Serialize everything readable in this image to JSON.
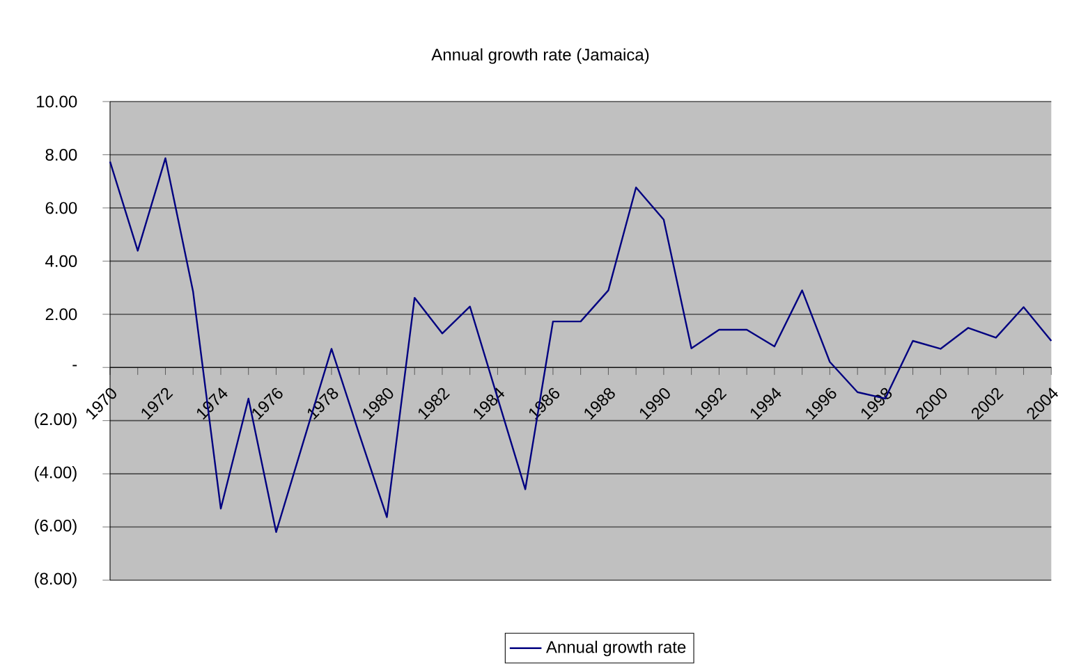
{
  "chart_data": {
    "type": "line",
    "title": "Annual growth rate (Jamaica)",
    "categories": [
      "1970",
      null,
      "1972",
      null,
      "1974",
      null,
      "1976",
      null,
      "1978",
      null,
      "1980",
      null,
      "1982",
      null,
      "1984",
      null,
      "1986",
      null,
      "1988",
      null,
      "1990",
      null,
      "1992",
      null,
      "1994",
      null,
      "1996",
      null,
      "1998",
      null,
      "2000",
      null,
      "2002",
      null,
      "2004"
    ],
    "series": [
      {
        "name": "Annual growth rate",
        "color": "#000080",
        "values": [
          7.74,
          4.39,
          7.87,
          2.85,
          -5.31,
          -1.17,
          -6.19,
          -2.74,
          0.7,
          -2.5,
          -5.63,
          2.62,
          1.28,
          2.29,
          -1.15,
          -4.58,
          1.73,
          1.73,
          2.9,
          6.77,
          5.56,
          0.72,
          1.42,
          1.42,
          0.79,
          2.9,
          0.21,
          -0.93,
          -1.17,
          1.0,
          0.7,
          1.49,
          1.12,
          2.27,
          1.0
        ]
      }
    ],
    "ylim": [
      -8,
      10
    ],
    "yticks": [
      {
        "value": -8,
        "label": "(8.00)"
      },
      {
        "value": -6,
        "label": "(6.00)"
      },
      {
        "value": -4,
        "label": "(4.00)"
      },
      {
        "value": -2,
        "label": "(2.00)"
      },
      {
        "value": 0,
        "label": "-"
      },
      {
        "value": 2,
        "label": "2.00"
      },
      {
        "value": 4,
        "label": "4.00"
      },
      {
        "value": 6,
        "label": "6.00"
      },
      {
        "value": 8,
        "label": "8.00"
      },
      {
        "value": 10,
        "label": "10.00"
      }
    ],
    "grid": "y",
    "legend": "bottom",
    "marker": "none",
    "line_style": "solid"
  }
}
